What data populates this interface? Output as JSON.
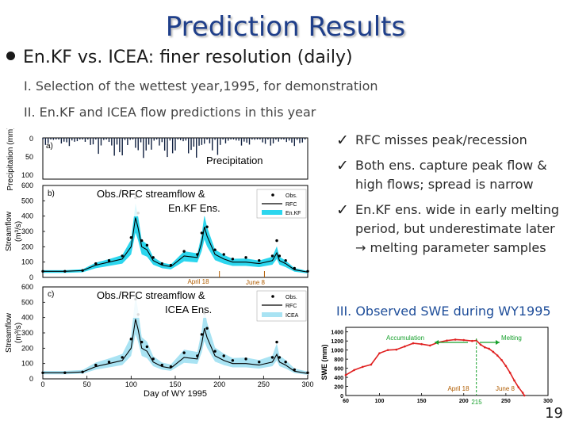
{
  "slide": {
    "title": "Prediction Results",
    "bullet": "En.KF vs. ICEA: finer resolution (daily)",
    "sub_items": [
      "I. Selection of the wettest year,1995, for demonstration",
      "II. En.KF and ICEA flow predictions in this year"
    ],
    "checks": [
      "RFC misses peak/recession",
      "Both ens. capture peak flow & high flows; spread is narrow",
      "En.KF ens. wide in early melting period, but underestimate later → melting parameter samples"
    ],
    "swe_heading": "III. Observed SWE during WY1995",
    "page_number": "19"
  },
  "left_figure": {
    "panel_a": {
      "letter": "a)",
      "label": "Precipitation",
      "ylabel": "Precipitation (mm)",
      "yticks": [
        "0",
        "50",
        "100"
      ]
    },
    "panel_b": {
      "letter": "b)",
      "label_line1": "Obs./RFC streamflow &",
      "label_line2": "En.KF Ens.",
      "ylabel_line1": "Streamflow",
      "ylabel_line2": "(m³/s)",
      "legend": [
        "Obs.",
        "RFC",
        "En.KF"
      ],
      "yticks": [
        "0",
        "100",
        "200",
        "300",
        "400",
        "500",
        "600"
      ],
      "marker1": "April 18",
      "marker2": "June 8"
    },
    "panel_c": {
      "letter": "c)",
      "label_line1": "Obs./RFC streamflow &",
      "label_line2": "ICEA Ens.",
      "ylabel_line1": "Streamflow",
      "ylabel_line2": "(m³/s)",
      "legend": [
        "Obs.",
        "RFC",
        "ICEA"
      ],
      "yticks": [
        "0",
        "100",
        "200",
        "300",
        "400",
        "500",
        "600"
      ]
    },
    "xticks": [
      "0",
      "50",
      "100",
      "150",
      "200",
      "250",
      "300"
    ],
    "xlabel": "Day of WY 1995"
  },
  "swe_chart": {
    "accumulation_label": "Accumulation",
    "melting_label": "Melting",
    "ylabel": "SWE (mm)",
    "yticks": [
      "0",
      "200",
      "400",
      "600",
      "800",
      "1000",
      "1200",
      "1400"
    ],
    "xticks": [
      "0",
      "60",
      "100",
      "150",
      "200",
      "250",
      "300"
    ],
    "marker1": "April 18",
    "marker2": "June 8",
    "marker_day": "215"
  },
  "chart_data": [
    {
      "type": "line",
      "xlabel": "Day of WY 1995",
      "ylabel": "Streamflow (m³/s)",
      "xlim": [
        0,
        300
      ],
      "ylim": [
        0,
        600
      ],
      "series": [
        {
          "name": "Obs.",
          "x": [
            0,
            25,
            45,
            60,
            75,
            90,
            100,
            105,
            108,
            112,
            118,
            125,
            135,
            145,
            160,
            175,
            180,
            183,
            186,
            195,
            205,
            215,
            230,
            245,
            260,
            265,
            268,
            275,
            285,
            300
          ],
          "y": [
            40,
            40,
            45,
            90,
            110,
            140,
            260,
            520,
            420,
            240,
            210,
            130,
            90,
            80,
            170,
            150,
            290,
            430,
            330,
            180,
            150,
            120,
            130,
            110,
            140,
            240,
            140,
            110,
            60,
            40
          ]
        },
        {
          "name": "RFC",
          "x": [
            0,
            25,
            45,
            60,
            75,
            90,
            100,
            105,
            108,
            112,
            118,
            125,
            135,
            145,
            160,
            175,
            180,
            183,
            186,
            195,
            205,
            215,
            230,
            245,
            260,
            265,
            268,
            275,
            285,
            300
          ],
          "y": [
            40,
            40,
            45,
            80,
            100,
            120,
            200,
            390,
            320,
            200,
            180,
            110,
            80,
            70,
            140,
            130,
            230,
            330,
            270,
            150,
            120,
            100,
            100,
            90,
            110,
            160,
            110,
            90,
            50,
            35
          ]
        }
      ]
    },
    {
      "type": "line",
      "ylabel": "SWE (mm)",
      "xlim": [
        60,
        300
      ],
      "ylim": [
        0,
        1500
      ],
      "series": [
        {
          "name": "",
          "x": [
            60,
            70,
            80,
            90,
            100,
            110,
            120,
            130,
            140,
            150,
            160,
            170,
            180,
            190,
            200,
            210,
            215,
            220,
            225,
            230,
            235,
            240,
            245,
            250,
            255,
            260,
            265,
            270,
            272
          ],
          "y": [
            450,
            560,
            630,
            680,
            930,
            1000,
            1010,
            1080,
            1150,
            1130,
            1100,
            1170,
            1210,
            1230,
            1220,
            1200,
            1210,
            1120,
            1060,
            1030,
            960,
            880,
            780,
            650,
            500,
            330,
            180,
            60,
            0
          ]
        }
      ]
    }
  ]
}
